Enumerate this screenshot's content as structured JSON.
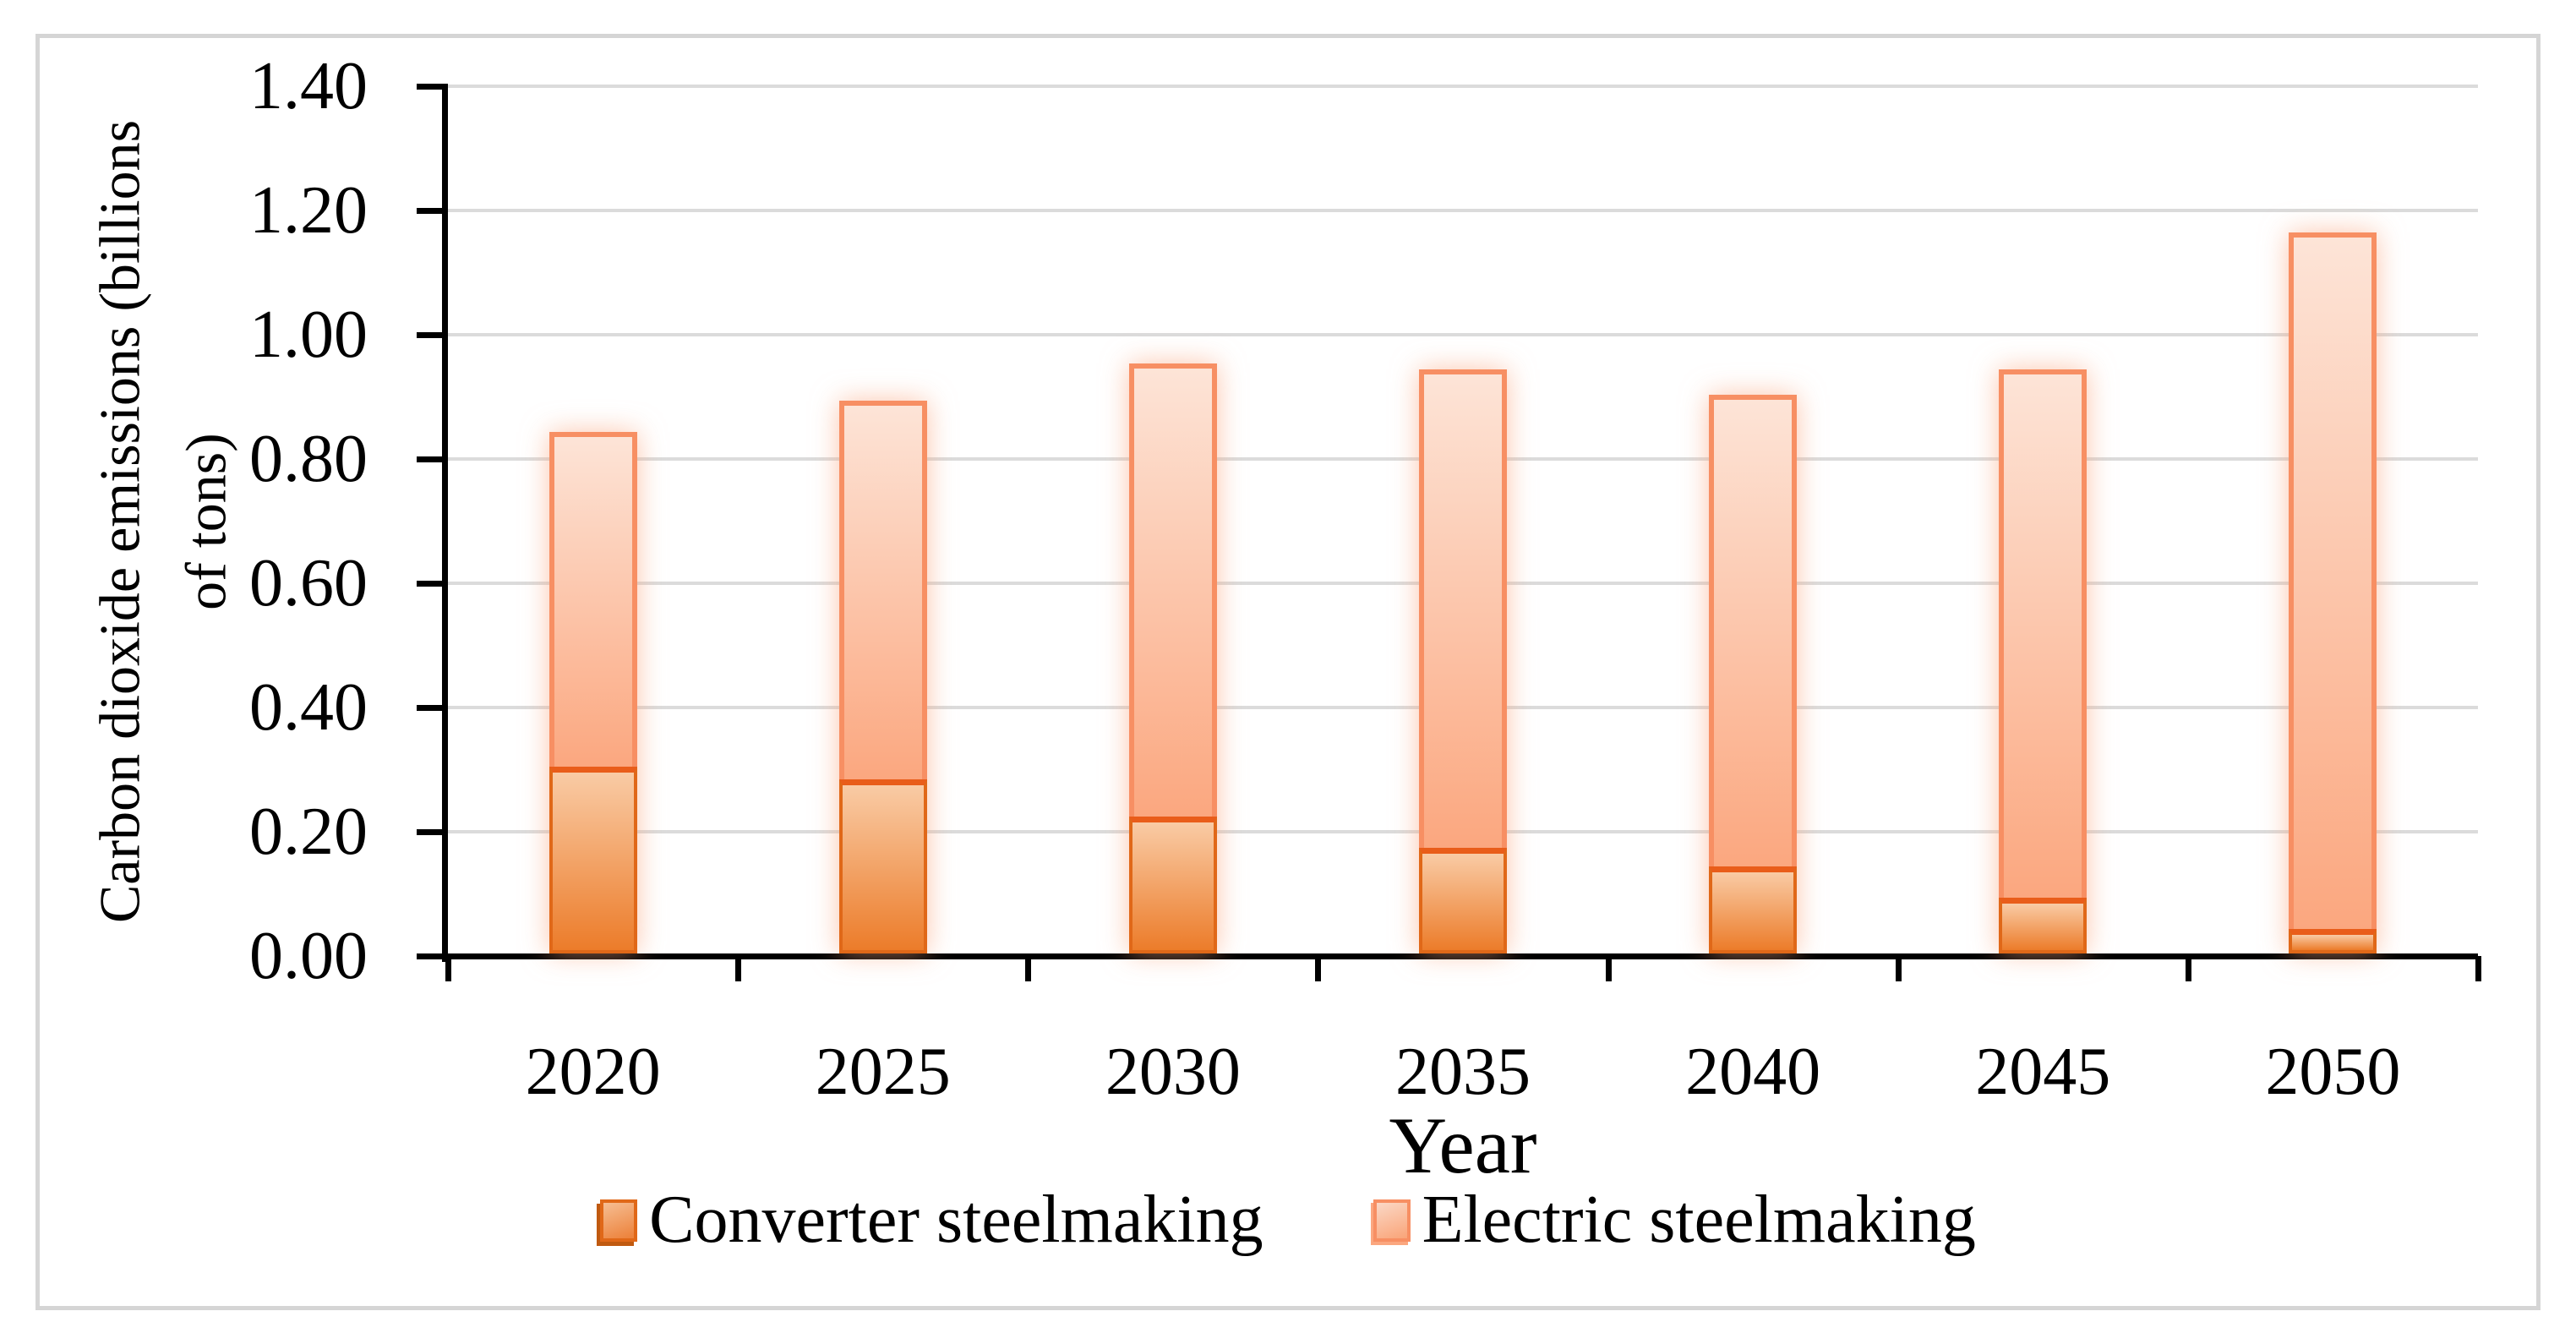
{
  "figure": {
    "background": "#FFFFFF",
    "border_color": "#D5D5D5"
  },
  "y_axis": {
    "title_line1": "Carbon dioxide emissions (billions",
    "title_line2": "of tons)",
    "tick_labels": [
      "0.00",
      "0.20",
      "0.40",
      "0.60",
      "0.80",
      "1.00",
      "1.20",
      "1.40"
    ]
  },
  "x_axis": {
    "title": "Year",
    "tick_labels": [
      "2020",
      "2025",
      "2030",
      "2035",
      "2040",
      "2045",
      "2050"
    ]
  },
  "legend": {
    "items": [
      {
        "label": "Converter steelmaking",
        "series": "converter"
      },
      {
        "label": "Electric steelmaking",
        "series": "electric"
      }
    ]
  },
  "colors": {
    "converter_fill_top": "#F9CBA5",
    "converter_fill_bottom": "#EC7C2A",
    "converter_border": "#E06818",
    "boundary_line": "#E95D1A",
    "electric_fill_top": "#FDE4D7",
    "electric_fill_bottom": "#FBA77F",
    "electric_border": "#F78F63",
    "gridline": "#DBDBDB",
    "axis": "#000000",
    "glow": "rgba(250,166,128,0.65)"
  },
  "chart_data": {
    "type": "bar",
    "stacked": true,
    "title": "",
    "xlabel": "Year",
    "ylabel": "Carbon dioxide emissions (billions of tons)",
    "categories": [
      "2020",
      "2025",
      "2030",
      "2035",
      "2040",
      "2045",
      "2050"
    ],
    "series": [
      {
        "name": "Converter steelmaking",
        "values": [
          0.3,
          0.28,
          0.22,
          0.17,
          0.14,
          0.09,
          0.04
        ]
      },
      {
        "name": "Electric steelmaking",
        "values": [
          0.54,
          0.61,
          0.73,
          0.77,
          0.76,
          0.85,
          1.12
        ]
      }
    ],
    "stack_totals": [
      0.84,
      0.89,
      0.95,
      0.94,
      0.9,
      0.94,
      1.16
    ],
    "ylim": [
      0,
      1.4
    ],
    "y_tick_step": 0.2,
    "grid": true,
    "legend_position": "bottom"
  }
}
